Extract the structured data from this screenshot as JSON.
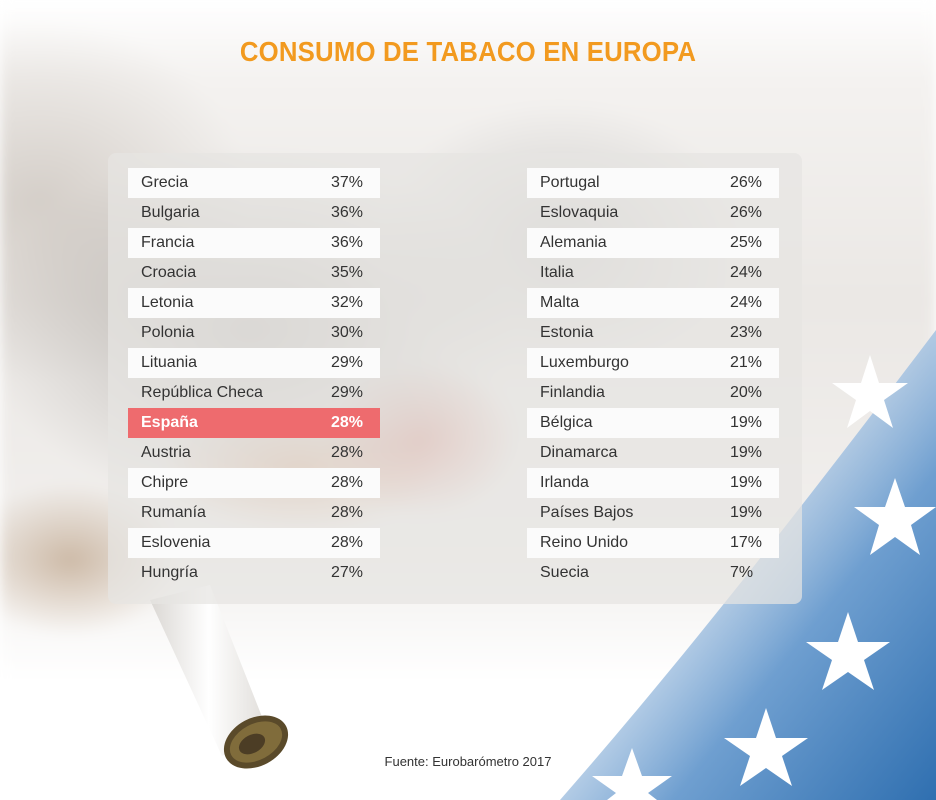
{
  "title": "CONSUMO DE TABACO EN EUROPA",
  "source": "Fuente: Eurobarómetro 2017",
  "highlight_country": "España",
  "colors": {
    "title": "#f29a1f",
    "highlight": "#ee6b6e",
    "flag_blue": "#2f6fb0",
    "text": "#333333"
  },
  "chart_data": {
    "type": "table",
    "title": "CONSUMO DE TABACO EN EUROPA",
    "columns": [
      {
        "rows": [
          {
            "country": "Grecia",
            "value": "37%"
          },
          {
            "country": "Bulgaria",
            "value": "36%"
          },
          {
            "country": "Francia",
            "value": "36%"
          },
          {
            "country": "Croacia",
            "value": "35%"
          },
          {
            "country": "Letonia",
            "value": "32%"
          },
          {
            "country": "Polonia",
            "value": "30%"
          },
          {
            "country": "Lituania",
            "value": "29%"
          },
          {
            "country": "República Checa",
            "value": "29%"
          },
          {
            "country": "España",
            "value": "28%"
          },
          {
            "country": "Austria",
            "value": "28%"
          },
          {
            "country": "Chipre",
            "value": "28%"
          },
          {
            "country": "Rumanía",
            "value": "28%"
          },
          {
            "country": "Eslovenia",
            "value": "28%"
          },
          {
            "country": "Hungría",
            "value": "27%"
          }
        ]
      },
      {
        "rows": [
          {
            "country": "Portugal",
            "value": "26%"
          },
          {
            "country": "Eslovaquia",
            "value": "26%"
          },
          {
            "country": "Alemania",
            "value": "25%"
          },
          {
            "country": "Italia",
            "value": "24%"
          },
          {
            "country": "Malta",
            "value": "24%"
          },
          {
            "country": "Estonia",
            "value": "23%"
          },
          {
            "country": "Luxemburgo",
            "value": "21%"
          },
          {
            "country": "Finlandia",
            "value": "20%"
          },
          {
            "country": "Bélgica",
            "value": "19%"
          },
          {
            "country": "Dinamarca",
            "value": "19%"
          },
          {
            "country": "Irlanda",
            "value": "19%"
          },
          {
            "country": "Países Bajos",
            "value": "19%"
          },
          {
            "country": "Reino Unido",
            "value": "17%"
          },
          {
            "country": "Suecia",
            "value": "7%"
          }
        ]
      }
    ]
  }
}
